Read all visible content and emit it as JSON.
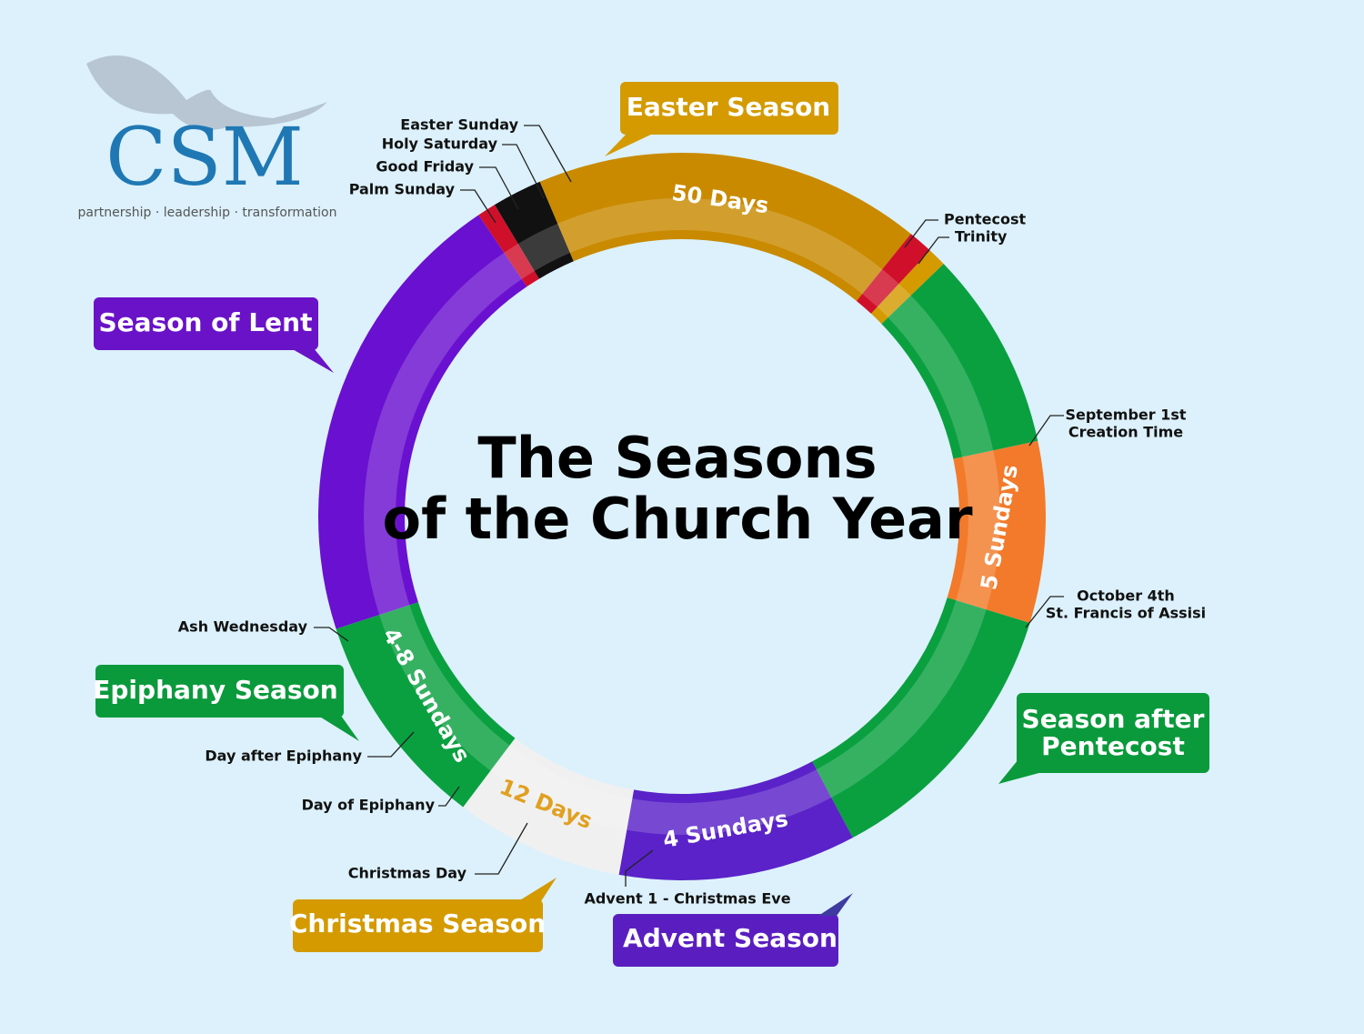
{
  "logo": {
    "name": "CSM",
    "tagline": "partnership · leadership · transformation"
  },
  "title": [
    "The Seasons",
    "of the Church Year"
  ],
  "seasons": {
    "easter": "Easter Season",
    "lent": "Season of Lent",
    "epiphany": "Epiphany Season",
    "christmas": "Christmas Season",
    "advent": "Advent Season",
    "after_pentecost": [
      "Season after",
      "Pentecost"
    ]
  },
  "durations": {
    "easter": "50 Days",
    "creation": "5 Sundays",
    "advent": "4 Sundays",
    "christmas": "12 Days",
    "epiphany": "4-8 Sundays"
  },
  "markers": {
    "easter_sunday": "Easter Sunday",
    "holy_saturday": "Holy Saturday",
    "good_friday": "Good Friday",
    "palm_sunday": "Palm Sunday",
    "pentecost": "Pentecost",
    "trinity": "Trinity",
    "creation_time": [
      "September 1st",
      "Creation Time"
    ],
    "st_francis": [
      "October 4th",
      "St. Francis of Assisi"
    ],
    "ash_wednesday": "Ash Wednesday",
    "day_after_epiphany": "Day after Epiphany",
    "day_of_epiphany": "Day of Epiphany",
    "christmas_day": "Christmas Day",
    "advent": "Advent 1 - Christmas Eve"
  }
}
